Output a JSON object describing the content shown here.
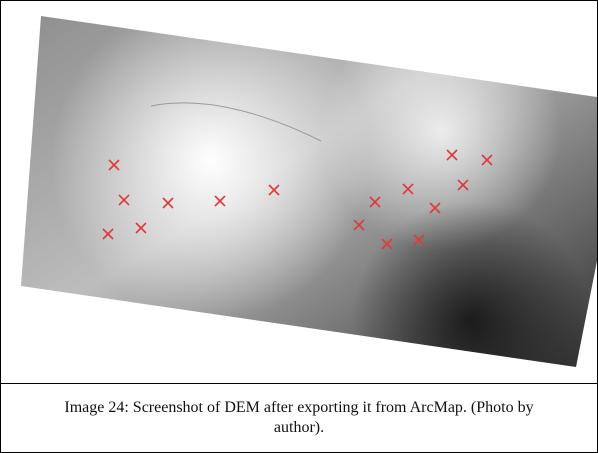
{
  "caption": "Image 24: Screenshot of DEM after exporting it from ArcMap. (Photo by author)."
}
